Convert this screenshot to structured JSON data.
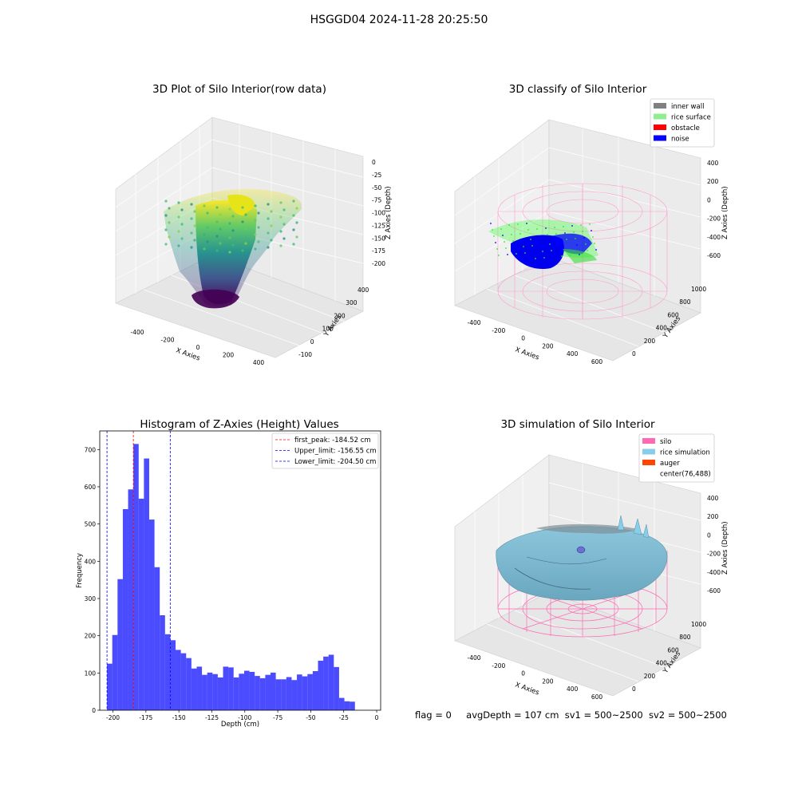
{
  "figure": {
    "title": "HSGGD04 2024-11-28 20:25:50",
    "footer": {
      "flag": "flag = 0",
      "avg_depth": "avgDepth = 107 cm",
      "sv1": "sv1 = 500~2500",
      "sv2": "sv2 = 500~2500"
    }
  },
  "panels": {
    "raw": {
      "title": "3D Plot of Silo Interior(row data)",
      "x_ticks": [
        "-400",
        "-200",
        "0",
        "200",
        "400"
      ],
      "y_ticks": [
        "-100",
        "0",
        "100",
        "200",
        "300",
        "400"
      ],
      "z_ticks": [
        "0",
        "-25",
        "-50",
        "-75",
        "-100",
        "-125",
        "-150",
        "-175",
        "-200"
      ],
      "xlabel": "X Axies",
      "ylabel": "Y Axies",
      "zlabel": "Z Axies (Depth)"
    },
    "classify": {
      "title": "3D classify of Silo Interior",
      "legend": [
        {
          "label": "inner wall",
          "color": "#808080"
        },
        {
          "label": "rice surface",
          "color": "#90ee90"
        },
        {
          "label": "obstacle",
          "color": "#ff0000"
        },
        {
          "label": "noise",
          "color": "#0000ff"
        }
      ],
      "x_ticks": [
        "-400",
        "-200",
        "0",
        "200",
        "400",
        "600"
      ],
      "y_ticks": [
        "0",
        "200",
        "400",
        "600",
        "800",
        "1000"
      ],
      "z_ticks": [
        "400",
        "200",
        "0",
        "-200",
        "-400",
        "-600"
      ],
      "xlabel": "X Axies",
      "ylabel": "Y Axies",
      "zlabel": "Z Axies (Depth)"
    },
    "simulation": {
      "title": "3D simulation of Silo Interior",
      "legend": [
        {
          "label": "silo",
          "color": "#ff69b4"
        },
        {
          "label": "rice simulation",
          "color": "#87ceeb"
        },
        {
          "label": "auger",
          "color": "#ff4500"
        },
        {
          "label": "center(76,488)",
          "color": ""
        }
      ],
      "x_ticks": [
        "-400",
        "-200",
        "0",
        "200",
        "400",
        "600"
      ],
      "y_ticks": [
        "0",
        "200",
        "400",
        "600",
        "800",
        "1000"
      ],
      "z_ticks": [
        "400",
        "200",
        "0",
        "-200",
        "-400",
        "-600"
      ],
      "xlabel": "X Axies",
      "ylabel": "Y Axies",
      "zlabel": "Z Axies (Depth)"
    }
  },
  "chart_data": {
    "type": "bar",
    "title": "Histogram of Z-Axies (Height) Values",
    "xlabel": "Depth (cm)",
    "ylabel": "Frequency",
    "xlim": [
      -210,
      3
    ],
    "ylim": [
      0,
      750
    ],
    "x_ticks": [
      "-200",
      "-175",
      "-150",
      "-125",
      "-100",
      "-75",
      "-50",
      "-25",
      "0"
    ],
    "y_ticks": [
      "0",
      "100",
      "200",
      "300",
      "400",
      "500",
      "600",
      "700"
    ],
    "bar_color": "#0000ff",
    "bin_start": -204.5,
    "bin_width": 4,
    "values": [
      125,
      202,
      352,
      540,
      593,
      715,
      568,
      676,
      512,
      384,
      255,
      204,
      188,
      162,
      153,
      140,
      112,
      117,
      95,
      101,
      97,
      88,
      117,
      115,
      88,
      98,
      106,
      103,
      92,
      86,
      95,
      101,
      83,
      83,
      89,
      81,
      96,
      91,
      97,
      105,
      133,
      144,
      149,
      116,
      33,
      24,
      23
    ],
    "vlines": [
      {
        "label": "first_peak: -184.52 cm",
        "x": -184.52,
        "color": "#ff0000"
      },
      {
        "label": "Upper_limit: -156.55 cm",
        "x": -156.55,
        "color": "#0000ff"
      },
      {
        "label": "Lower_limit: -204.50 cm",
        "x": -204.5,
        "color": "#0000ff"
      }
    ],
    "legend_position": "top-right"
  }
}
